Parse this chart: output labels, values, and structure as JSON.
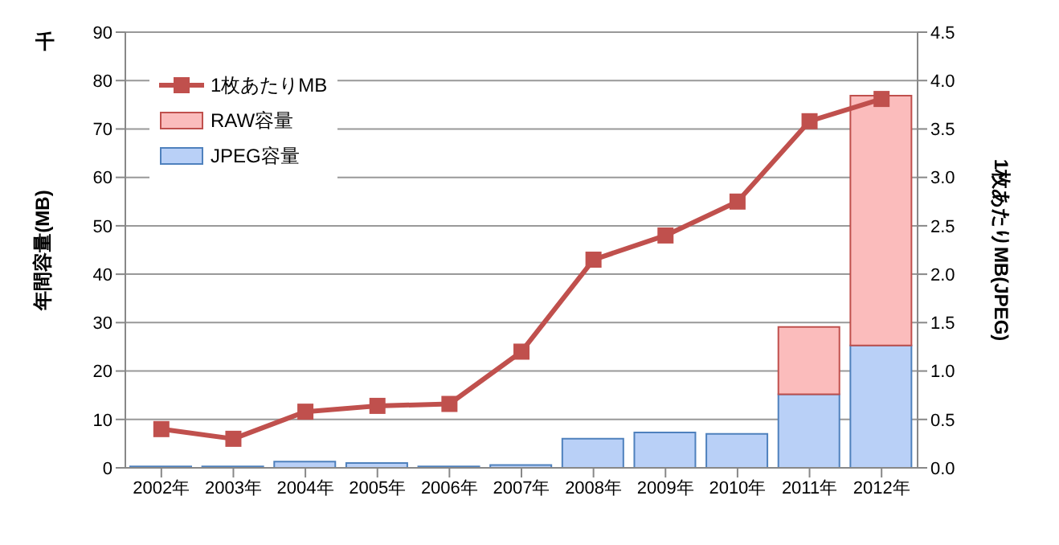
{
  "chart_data": {
    "type": "bar",
    "stacked": true,
    "categories": [
      "2002年",
      "2003年",
      "2004年",
      "2005年",
      "2006年",
      "2007年",
      "2008年",
      "2009年",
      "2010年",
      "2011年",
      "2012年"
    ],
    "series": [
      {
        "name": "JPEG容量",
        "color": "#b9d0f7",
        "values": [
          0.3,
          0.3,
          1.3,
          1.0,
          0.3,
          0.6,
          6.0,
          7.3,
          7.0,
          15.2,
          25.3
        ]
      },
      {
        "name": "RAW容量",
        "color": "#fbbcbc",
        "values": [
          0,
          0,
          0,
          0,
          0,
          0,
          0,
          0,
          0,
          13.9,
          51.6
        ]
      },
      {
        "name": "1枚あたりMB",
        "type": "line",
        "axis": "y2",
        "color": "#c0504d",
        "marker": "square",
        "values": [
          0.4,
          0.3,
          0.58,
          0.64,
          0.66,
          1.2,
          2.15,
          2.4,
          2.75,
          3.58,
          3.81
        ]
      }
    ],
    "ylabel": "年間容量(MB)",
    "y2label": "1枚あたりMB(JPEG)",
    "annotations": [
      "千"
    ],
    "ylim": [
      0,
      90
    ],
    "yticks": [
      0,
      10,
      20,
      30,
      40,
      50,
      60,
      70,
      80,
      90
    ],
    "y2lim": [
      0,
      4.5
    ],
    "y2ticks": [
      {
        "value": 0,
        "label": "0.0"
      },
      {
        "value": 0.5,
        "label": "0.5"
      },
      {
        "value": 1,
        "label": "1.0"
      },
      {
        "value": 1.5,
        "label": "1.5"
      },
      {
        "value": 2,
        "label": "2.0"
      },
      {
        "value": 2.5,
        "label": "2.5"
      },
      {
        "value": 3,
        "label": "3.0"
      },
      {
        "value": 3.5,
        "label": "3.5"
      },
      {
        "value": 4,
        "label": "4.0"
      },
      {
        "value": 4.5,
        "label": "4.5"
      }
    ],
    "grid": "y",
    "legend": "top left"
  }
}
